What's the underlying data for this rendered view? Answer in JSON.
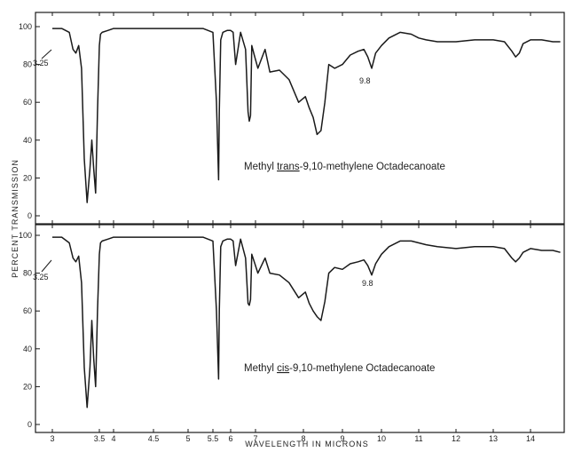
{
  "figure": {
    "ylabel": "PERCENT TRANSMISSION",
    "xlabel": "WAVELENGTH IN MICRONS"
  },
  "chart_data": [
    {
      "type": "line",
      "title_parts": [
        "Methyl ",
        "trans",
        "-9,10-methylene  Octadecanoate"
      ],
      "xlabel": "WAVELENGTH IN MICRONS",
      "ylabel": "PERCENT TRANSMISSION",
      "xlim": [
        3,
        14.8
      ],
      "ylim": [
        -3,
        103
      ],
      "x_ticks": [
        "3",
        "3.5",
        "4",
        "4.5",
        "5",
        "5.5",
        "6",
        "7",
        "8",
        "9",
        "10",
        "11",
        "12",
        "13",
        "14"
      ],
      "y_ticks": [
        "0",
        "20",
        "40",
        "60",
        "80",
        "100"
      ],
      "annotations": [
        {
          "text": "3.25",
          "x": 3.25,
          "y": 88
        },
        {
          "text": "9.8",
          "x": 9.75,
          "y": 80
        }
      ],
      "series": [
        {
          "x": [
            3.0,
            3.1,
            3.18,
            3.22,
            3.25,
            3.28,
            3.31,
            3.34,
            3.37,
            3.4,
            3.42,
            3.44,
            3.46,
            3.48,
            3.5,
            3.54,
            3.6,
            3.8,
            4.0,
            4.5,
            5.0,
            5.3,
            5.5,
            5.6,
            5.66,
            5.68,
            5.72,
            5.78,
            5.9,
            6.0,
            6.1,
            6.2,
            6.4,
            6.6,
            6.7,
            6.75,
            6.8,
            6.85,
            6.95,
            7.05,
            7.2,
            7.3,
            7.5,
            7.7,
            7.9,
            8.05,
            8.15,
            8.25,
            8.35,
            8.45,
            8.55,
            8.65,
            8.8,
            9.0,
            9.2,
            9.4,
            9.55,
            9.65,
            9.75,
            9.85,
            10.0,
            10.2,
            10.5,
            10.8,
            11.0,
            11.2,
            11.5,
            12.0,
            12.5,
            13.0,
            13.3,
            13.5,
            13.6,
            13.7,
            13.8,
            14.0,
            14.3,
            14.6,
            14.8
          ],
          "y": [
            99,
            99,
            97,
            88,
            86,
            90,
            78,
            30,
            7,
            25,
            40,
            25,
            12,
            55,
            90,
            96,
            97,
            98,
            99,
            99,
            99,
            99,
            97,
            60,
            19,
            55,
            93,
            97,
            98,
            98,
            97,
            80,
            97,
            88,
            55,
            50,
            53,
            90,
            85,
            78,
            88,
            76,
            77,
            72,
            60,
            63,
            57,
            52,
            43,
            45,
            60,
            80,
            78,
            80,
            85,
            87,
            88,
            84,
            78,
            86,
            90,
            94,
            97,
            96,
            94,
            93,
            92,
            92,
            93,
            93,
            92,
            87,
            84,
            86,
            91,
            93,
            93,
            92,
            92
          ]
        }
      ]
    },
    {
      "type": "line",
      "title_parts": [
        "Methyl ",
        "cis",
        "-9,10-methylene  Octadecanoate"
      ],
      "xlabel": "WAVELENGTH IN MICRONS",
      "ylabel": "PERCENT TRANSMISSION",
      "xlim": [
        3,
        14.8
      ],
      "ylim": [
        -3,
        103
      ],
      "x_ticks": [
        "3",
        "3.5",
        "4",
        "4.5",
        "5",
        "5.5",
        "6",
        "7",
        "8",
        "9",
        "10",
        "11",
        "12",
        "13",
        "14"
      ],
      "y_ticks": [
        "0",
        "20",
        "40",
        "60",
        "80",
        "100"
      ],
      "annotations": [
        {
          "text": "3.25",
          "x": 3.25,
          "y": 86
        },
        {
          "text": "9.8",
          "x": 9.75,
          "y": 79
        }
      ],
      "series": [
        {
          "x": [
            3.0,
            3.1,
            3.18,
            3.22,
            3.25,
            3.28,
            3.31,
            3.34,
            3.37,
            3.4,
            3.42,
            3.44,
            3.46,
            3.48,
            3.5,
            3.54,
            3.6,
            3.8,
            4.0,
            4.5,
            5.0,
            5.3,
            5.5,
            5.6,
            5.66,
            5.68,
            5.72,
            5.78,
            5.9,
            6.0,
            6.1,
            6.2,
            6.4,
            6.6,
            6.7,
            6.75,
            6.8,
            6.85,
            6.95,
            7.05,
            7.2,
            7.3,
            7.5,
            7.7,
            7.9,
            8.05,
            8.15,
            8.25,
            8.35,
            8.45,
            8.55,
            8.65,
            8.8,
            9.0,
            9.2,
            9.4,
            9.55,
            9.65,
            9.75,
            9.85,
            10.0,
            10.2,
            10.5,
            10.8,
            11.0,
            11.2,
            11.5,
            12.0,
            12.5,
            13.0,
            13.3,
            13.5,
            13.6,
            13.7,
            13.8,
            14.0,
            14.3,
            14.6,
            14.8
          ],
          "y": [
            99,
            99,
            96,
            88,
            86,
            89,
            75,
            30,
            9,
            30,
            55,
            35,
            20,
            60,
            90,
            96,
            97,
            98,
            99,
            99,
            99,
            99,
            97,
            60,
            24,
            60,
            94,
            97,
            98,
            98,
            97,
            84,
            98,
            88,
            64,
            63,
            66,
            90,
            86,
            80,
            88,
            80,
            79,
            75,
            67,
            70,
            64,
            60,
            57,
            55,
            65,
            80,
            83,
            82,
            85,
            86,
            87,
            84,
            79,
            85,
            90,
            94,
            97,
            97,
            96,
            95,
            94,
            93,
            94,
            94,
            93,
            88,
            86,
            88,
            91,
            93,
            92,
            92,
            91
          ]
        }
      ]
    }
  ]
}
